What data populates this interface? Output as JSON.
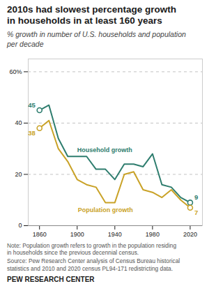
{
  "chart_data": {
    "type": "line",
    "title": "2010s had slowest percentage growth\nin households in at least 160 years",
    "subtitle": "% growth in number of U.S. households and population\nper decade",
    "x": [
      1860,
      1870,
      1880,
      1890,
      1900,
      1910,
      1920,
      1930,
      1940,
      1950,
      1960,
      1970,
      1980,
      1990,
      2000,
      2010,
      2020
    ],
    "series": [
      {
        "name": "Household growth",
        "color": "#2e7d6e",
        "values": [
          45,
          47,
          34,
          27,
          27,
          27,
          22,
          22,
          18,
          24,
          24,
          23,
          28,
          16,
          15,
          11,
          9
        ]
      },
      {
        "name": "Population growth",
        "color": "#c9a227",
        "values": [
          38,
          41,
          30,
          25,
          18,
          16,
          15,
          9,
          9,
          20,
          21,
          14,
          13,
          11,
          14,
          10,
          7
        ]
      }
    ],
    "annotations": [
      {
        "series": "Household growth",
        "x": 1860,
        "y": 45,
        "text": "45"
      },
      {
        "series": "Population growth",
        "x": 1860,
        "y": 38,
        "text": "38"
      },
      {
        "series": "Household growth",
        "x": 2020,
        "y": 9,
        "text": "9"
      },
      {
        "series": "Population growth",
        "x": 2020,
        "y": 7,
        "text": "7"
      }
    ],
    "xlim": [
      1848,
      2033
    ],
    "xticks": [
      1860,
      1900,
      1940,
      1980,
      2020
    ],
    "ylim": [
      0,
      65
    ],
    "yticks": [
      0,
      20,
      40,
      {
        "value": 60,
        "label": "60%"
      }
    ],
    "grid": true,
    "note": "Note: Population growth refers to growth in the population residing\nin households since the previous decennial census.",
    "source": "Source: Pew Research Center analysis of Census Bureau historical\nstatistics and 2010 and 2020 census PL94-171 redistricting data.",
    "branding": "PEW RESEARCH CENTER"
  }
}
